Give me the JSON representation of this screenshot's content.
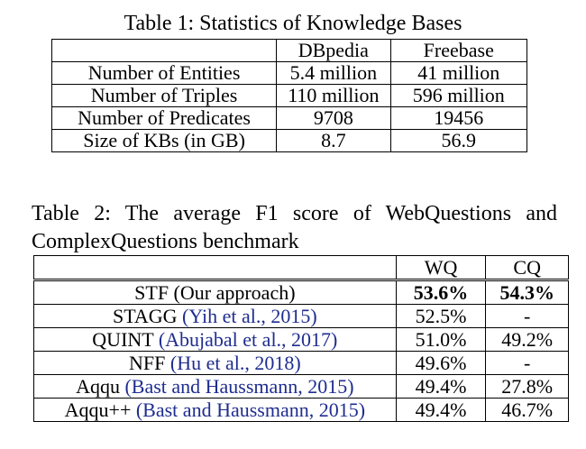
{
  "table1": {
    "caption": "Table 1: Statistics of Knowledge Bases",
    "headers": [
      "",
      "DBpedia",
      "Freebase"
    ],
    "rows": [
      {
        "label": "Number of Entities",
        "dbpedia": "5.4 million",
        "freebase": "41 million"
      },
      {
        "label": "Number of Triples",
        "dbpedia": "110 million",
        "freebase": "596 million"
      },
      {
        "label": "Number of Predicates",
        "dbpedia": "9708",
        "freebase": "19456"
      },
      {
        "label": "Size of KBs (in GB)",
        "dbpedia": "8.7",
        "freebase": "56.9"
      }
    ]
  },
  "table2": {
    "caption": "Table 2: The average F1 score of WebQuestions and ComplexQuestions benchmark",
    "headers": [
      "",
      "WQ",
      "CQ"
    ],
    "rows": [
      {
        "system": "STF (Our approach)",
        "cite": "",
        "wq": "53.6%",
        "cq": "54.3%"
      },
      {
        "system": "STAGG",
        "cite": "(Yih et al., 2015)",
        "wq": "52.5%",
        "cq": "-"
      },
      {
        "system": "QUINT",
        "cite": "(Abujabal et al., 2017)",
        "wq": "51.0%",
        "cq": "49.2%"
      },
      {
        "system": "NFF",
        "cite": "(Hu et al., 2018)",
        "wq": "49.6%",
        "cq": "-"
      },
      {
        "system": "Aqqu",
        "cite": "(Bast and Haussmann, 2015)",
        "wq": "49.4%",
        "cq": "27.8%"
      },
      {
        "system": "Aqqu++",
        "cite": "(Bast and Haussmann, 2015)",
        "wq": "49.4%",
        "cq": "46.7%"
      }
    ]
  },
  "colors": {
    "citation": "#1f2d8f"
  }
}
